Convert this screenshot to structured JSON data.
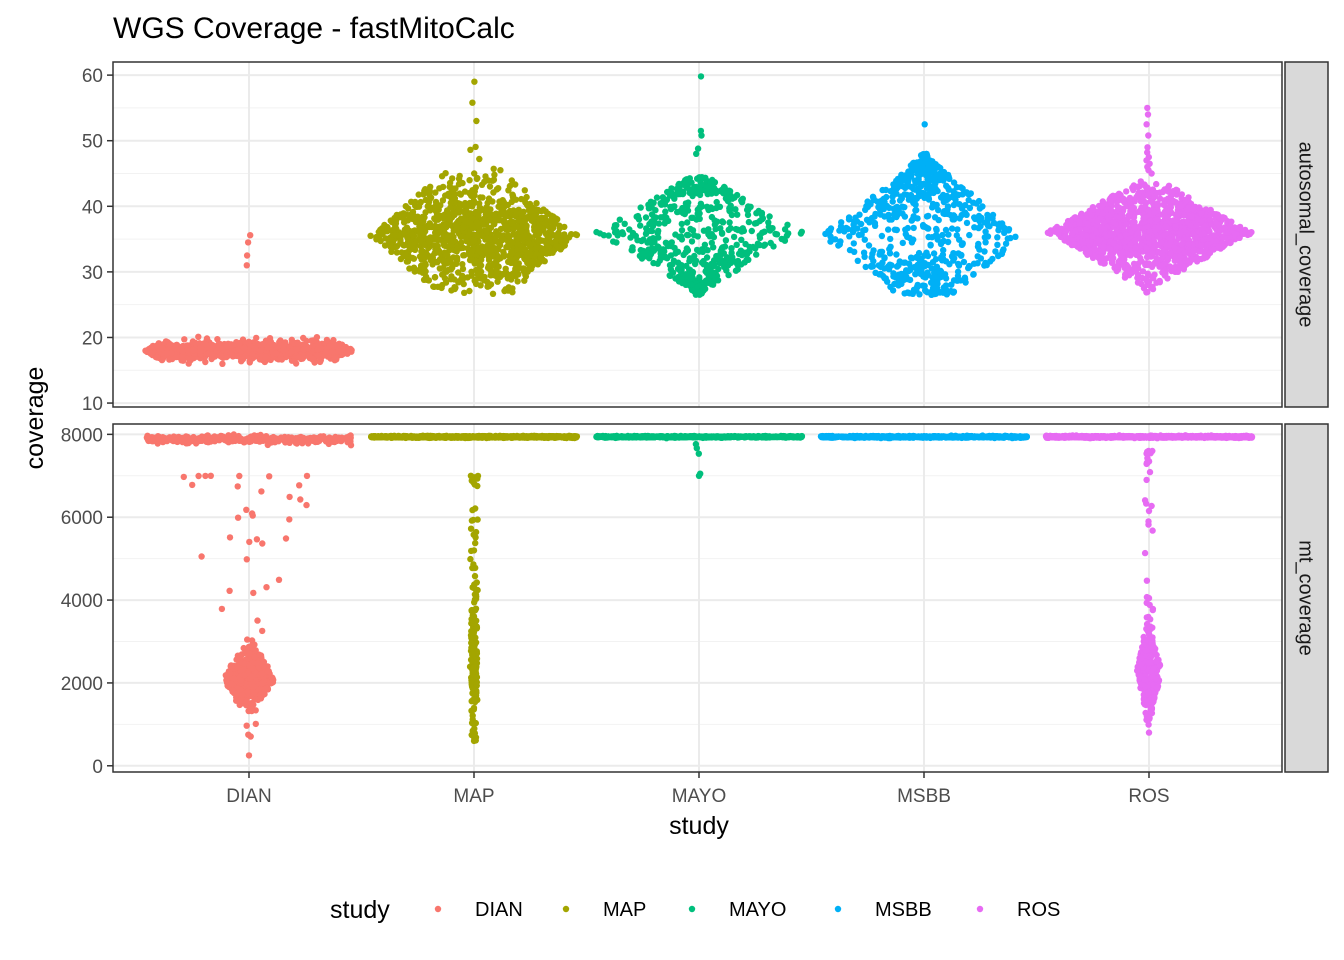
{
  "chart_data": {
    "type": "scatter",
    "subtype": "beeswarm",
    "title": "WGS Coverage - fastMitoCalc",
    "xlabel": "study",
    "ylabel": "coverage",
    "categories": [
      "DIAN",
      "MAP",
      "MAYO",
      "MSBB",
      "ROS"
    ],
    "legend": {
      "title": "study",
      "position": "bottom",
      "entries": [
        "DIAN",
        "MAP",
        "MAYO",
        "MSBB",
        "ROS"
      ]
    },
    "colors": {
      "DIAN": "#F8766D",
      "MAP": "#A3A500",
      "MAYO": "#00BF7D",
      "MSBB": "#00B0F6",
      "ROS": "#E76BF3"
    },
    "facets": [
      {
        "strip": "autosomal_coverage",
        "ylim": [
          9.4,
          62
        ],
        "yticks": [
          10,
          20,
          30,
          40,
          50,
          60
        ],
        "tick_labels": [
          "10",
          "20",
          "30",
          "40",
          "50",
          "60"
        ],
        "groups": [
          {
            "study": "DIAN",
            "n": 900,
            "dist": "normal",
            "median": 18.0,
            "spread": 0.7,
            "min": 12.0,
            "max": 29.2,
            "outliers": [
              35.6,
              34.5,
              32.5,
              31.0
            ]
          },
          {
            "study": "MAP",
            "n": 1100,
            "dist": "normal",
            "median": 35.5,
            "spread": 3.8,
            "min": 26.5,
            "max": 50.0,
            "outliers": [
              59.0,
              55.8,
              53.0
            ]
          },
          {
            "study": "MAYO",
            "n": 550,
            "dist": "uniform",
            "median": 36.0,
            "spread": 4.5,
            "min": 26.5,
            "max": 44.5,
            "outliers": [
              59.8,
              51.5,
              50.8,
              48.8,
              48.0
            ]
          },
          {
            "study": "MSBB",
            "n": 650,
            "dist": "uniform",
            "median": 35.5,
            "spread": 4.5,
            "min": 26.5,
            "max": 48.0,
            "outliers": [
              52.5
            ]
          },
          {
            "study": "ROS",
            "n": 1300,
            "dist": "normal",
            "median": 36.0,
            "spread": 3.0,
            "min": 26.8,
            "max": 44.0,
            "outliers": [
              55.0,
              54.0,
              52.5,
              50.8,
              49.0,
              48.2,
              47.5,
              47.0,
              46.5,
              46.0,
              45.5,
              45.0
            ]
          }
        ]
      },
      {
        "strip": "mt_coverage",
        "ylim": [
          -150,
          8250
        ],
        "yticks": [
          0,
          2000,
          4000,
          6000,
          8000
        ],
        "tick_labels": [
          "0",
          "2000",
          "4000",
          "6000",
          "8000"
        ],
        "groups": [
          {
            "study": "DIAN",
            "n_top": 420,
            "top_center": 7880,
            "n_low": 360,
            "low_center": 2100,
            "low_sd": 350,
            "tail_min": 250,
            "tail_max": 7000
          },
          {
            "study": "MAP",
            "n_top": 1100,
            "top_center": 7940,
            "n_low": 160,
            "low_center": 2500,
            "low_sd": 900,
            "tail_min": 600,
            "tail_max": 7000
          },
          {
            "study": "MAYO",
            "n_top": 560,
            "top_center": 7940,
            "n_low": 0,
            "low_center": 0,
            "low_sd": 0,
            "tail_min": 7000,
            "tail_max": 7800
          },
          {
            "study": "MSBB",
            "n_top": 650,
            "top_center": 7940,
            "n_low": 0,
            "low_center": 0,
            "low_sd": 0,
            "tail_min": 7900,
            "tail_max": 7940
          },
          {
            "study": "ROS",
            "n_top": 1250,
            "top_center": 7940,
            "n_low": 230,
            "low_center": 2300,
            "low_sd": 500,
            "tail_min": 800,
            "tail_max": 7600
          }
        ]
      }
    ]
  }
}
